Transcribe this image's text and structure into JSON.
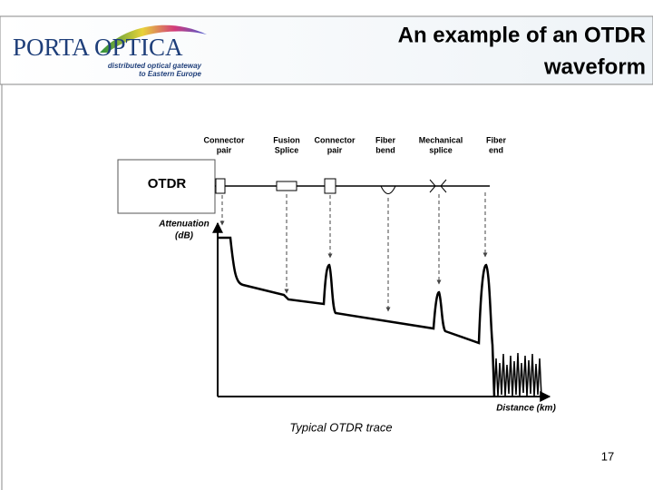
{
  "header": {
    "logo": {
      "name": "PORTA OPTICA",
      "tagline": [
        "distributed optical gateway",
        "to Eastern Europe"
      ]
    },
    "title": [
      "An example of an OTDR",
      "waveform"
    ]
  },
  "diagram": {
    "events": [
      [
        "Connector",
        "pair"
      ],
      [
        "Fusion",
        "Splice"
      ],
      [
        "Connector",
        "pair"
      ],
      [
        "Fiber",
        "bend"
      ],
      [
        "Mechanical",
        "splice"
      ],
      [
        "Fiber",
        "end"
      ]
    ],
    "instrument": "OTDR",
    "y_axis_label": [
      "Attenuation",
      "(dB)"
    ],
    "x_axis_label": "Distance (km)",
    "caption": "Typical OTDR trace"
  },
  "footer": {
    "page_number": "17"
  }
}
